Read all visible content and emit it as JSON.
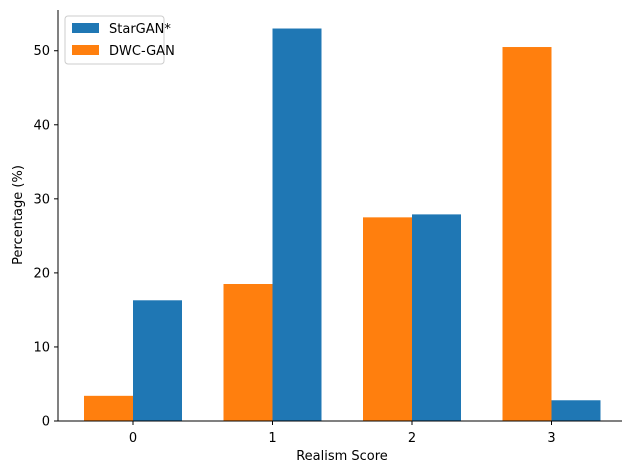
{
  "chart_data": {
    "type": "bar",
    "xlabel": "Realism Score",
    "ylabel": "Percentage (%)",
    "categories": [
      "0",
      "1",
      "2",
      "3"
    ],
    "ylim": [
      0,
      55.5
    ],
    "yticks": [
      0,
      10,
      20,
      30,
      40,
      50
    ],
    "grid": false,
    "legend_position": "top-left",
    "series": [
      {
        "name": "StarGAN*",
        "color": "#1f77b4",
        "values": [
          16.3,
          53.0,
          27.9,
          2.8
        ]
      },
      {
        "name": "DWC-GAN",
        "color": "#ff7f0e",
        "values": [
          3.4,
          18.5,
          27.5,
          50.5
        ]
      }
    ]
  }
}
